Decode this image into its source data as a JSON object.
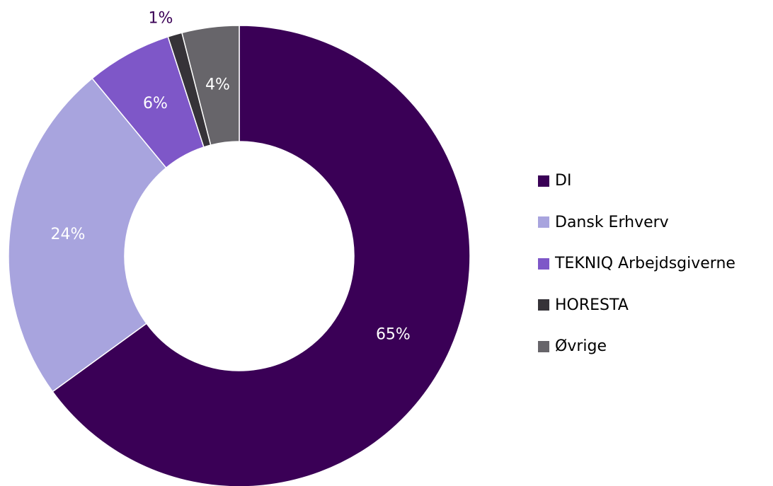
{
  "chart_data": {
    "type": "pie",
    "variant": "donut",
    "title": "",
    "categories": [
      "DI",
      "Dansk Erhverv",
      "TEKNIQ Arbejdsgiverne",
      "HORESTA",
      "Øvrige"
    ],
    "values": [
      65,
      24,
      6,
      1,
      4
    ],
    "value_labels": [
      "65%",
      "24%",
      "6%",
      "1%",
      "4%"
    ],
    "colors": [
      "#3a0056",
      "#a8a4de",
      "#7e57c8",
      "#363338",
      "#67656a"
    ],
    "label_colors": [
      "#ffffff",
      "#ffffff",
      "#ffffff",
      "#3a0056",
      "#ffffff"
    ],
    "legend_position": "right",
    "start_angle_deg": 0,
    "direction": "clockwise"
  }
}
